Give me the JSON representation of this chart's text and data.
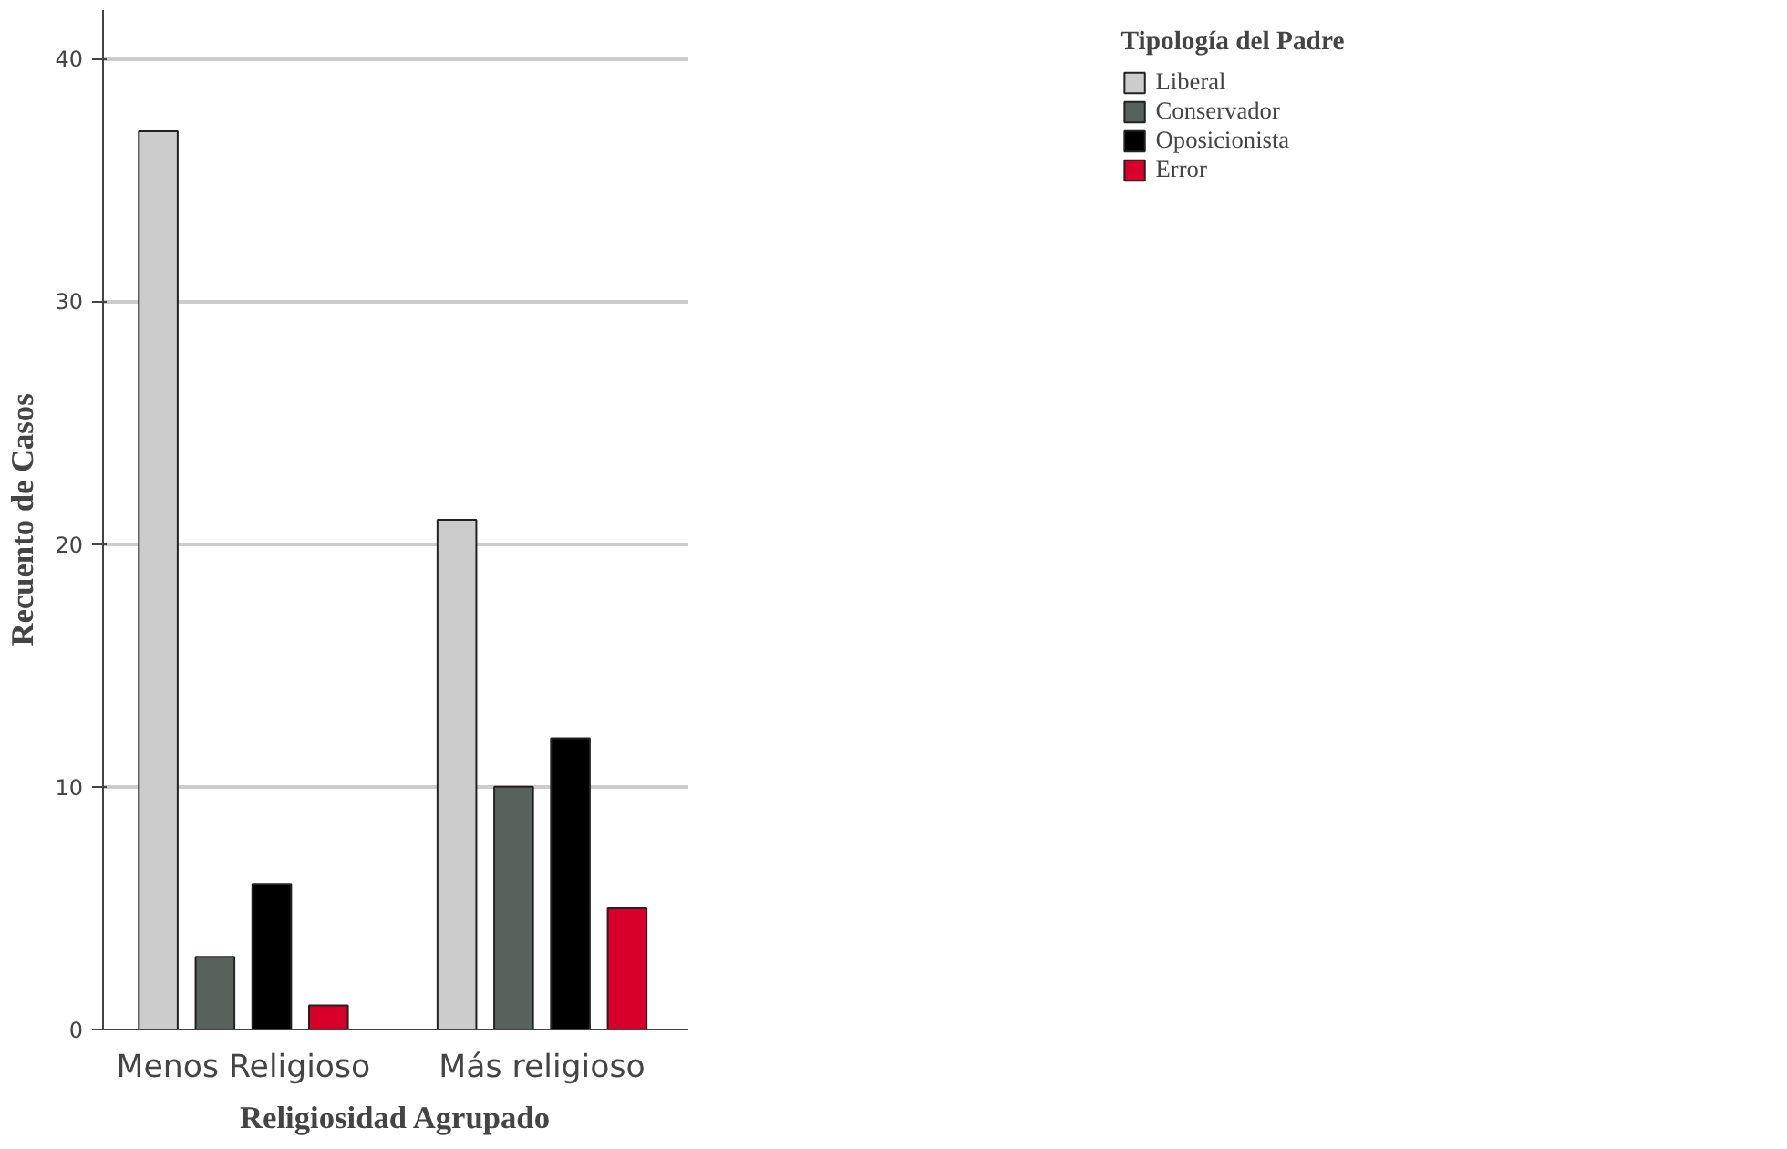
{
  "chart_data": {
    "type": "bar",
    "xlabel": "Religiosidad Agrupado",
    "ylabel": "Recuento de Casos",
    "legend_title": "Tipología del Padre",
    "categories": [
      "Menos Religioso",
      "Más religioso"
    ],
    "series": [
      {
        "name": "Liberal",
        "color": "#cccccc",
        "values": [
          37,
          21
        ]
      },
      {
        "name": "Conservador",
        "color": "#58625c",
        "values": [
          3,
          10
        ]
      },
      {
        "name": "Oposicionista",
        "color": "#000000",
        "values": [
          6,
          12
        ]
      },
      {
        "name": "Error",
        "color": "#d8002b",
        "values": [
          1,
          5
        ]
      }
    ],
    "ylim": [
      0,
      42
    ],
    "yticks": [
      0,
      10,
      20,
      30,
      40
    ],
    "grid": "y",
    "legend": "top right"
  }
}
